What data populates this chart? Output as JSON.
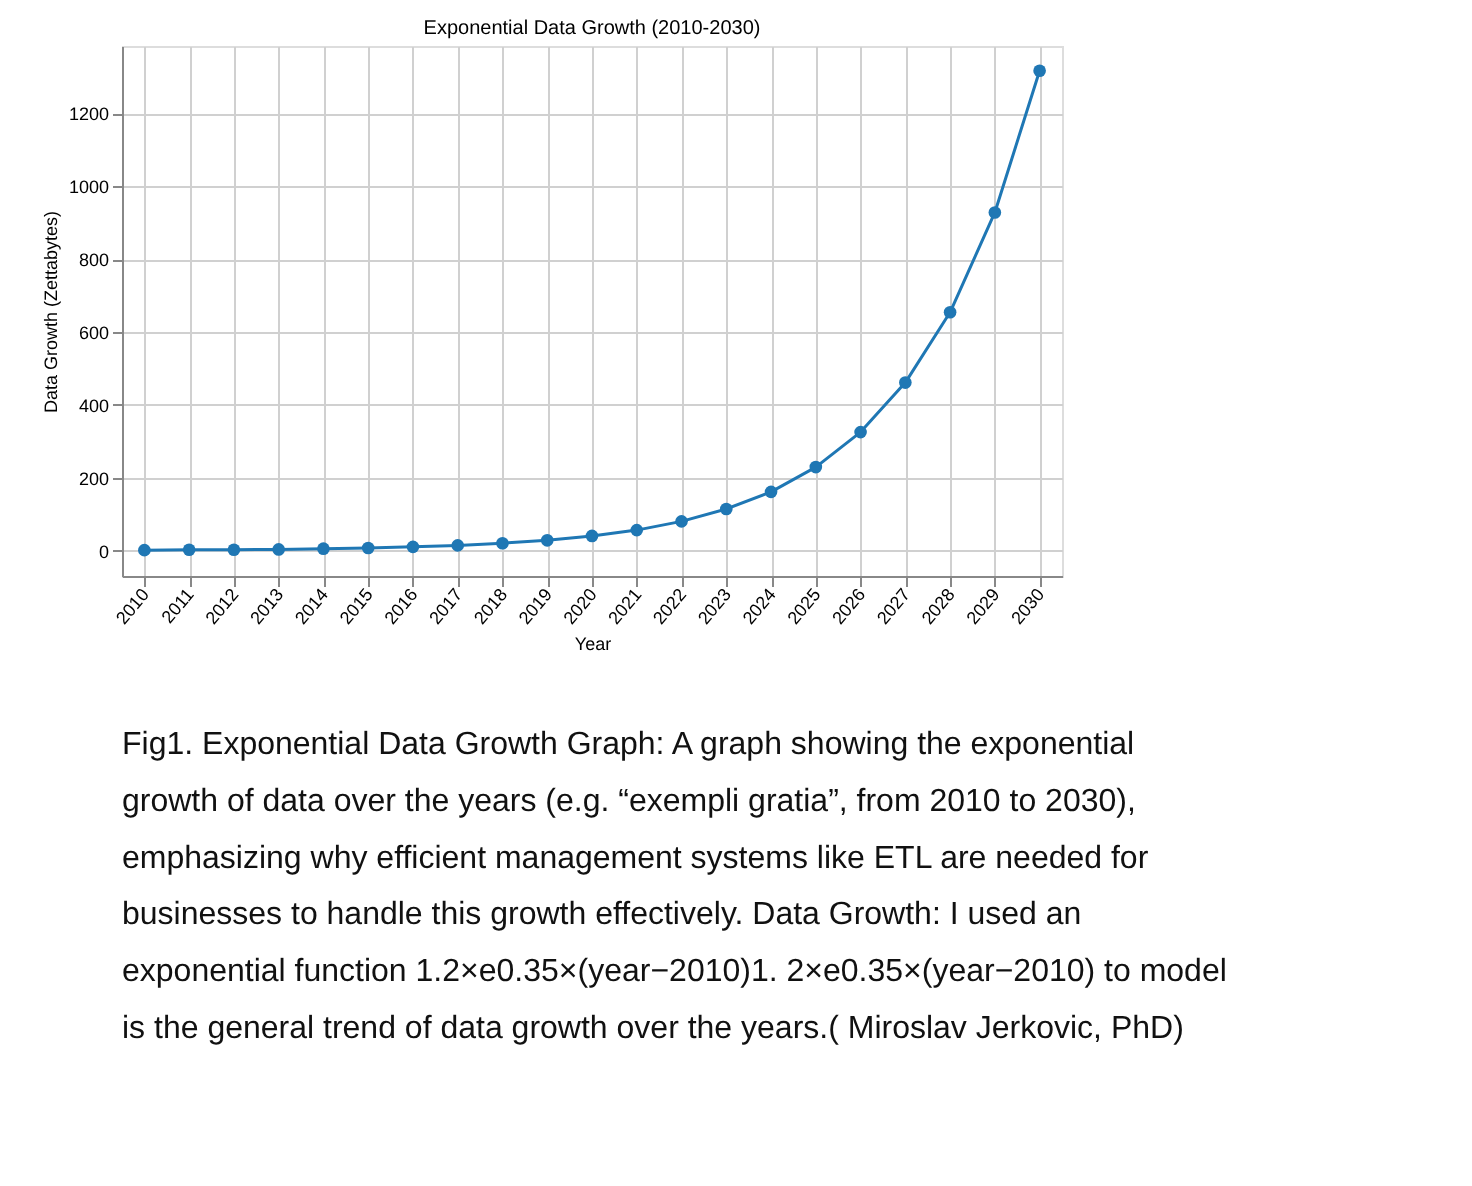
{
  "chart_data": {
    "type": "line",
    "title": "Exponential Data Growth (2010-2030)",
    "xlabel": "Year",
    "ylabel": "Data Growth (Zettabytes)",
    "categories": [
      "2010",
      "2011",
      "2012",
      "2013",
      "2014",
      "2015",
      "2016",
      "2017",
      "2018",
      "2019",
      "2020",
      "2021",
      "2022",
      "2023",
      "2024",
      "2025",
      "2026",
      "2027",
      "2028",
      "2029",
      "2030"
    ],
    "series": [
      {
        "color": "#1f77b4",
        "values": [
          1,
          2,
          2,
          3,
          5,
          7,
          10,
          14,
          20,
          28,
          40,
          56,
          80,
          114,
          161,
          229,
          325,
          461,
          654,
          928,
          1317
        ]
      }
    ],
    "ylim": [
      -70,
      1385
    ],
    "yticks": [
      0,
      200,
      400,
      600,
      800,
      1000,
      1200
    ],
    "grid": true,
    "marker": "circle",
    "line_style": "solid",
    "annotations": [
      "Fig1. Exponential Data Growth Graph: A graph showing the exponential",
      "growth of data over the years (e.g. “exempli gratia”, from 2010 to 2030),",
      "emphasizing why efficient management systems like ETL are needed for",
      "businesses to handle this growth effectively. Data Growth: I used an",
      "exponential function 1.2×e0.35×(year−2010)1. 2×e0.35×(year−2010) to model",
      "is the general trend of data growth over the years.( Miroslav Jerkovic, PhD)"
    ]
  }
}
